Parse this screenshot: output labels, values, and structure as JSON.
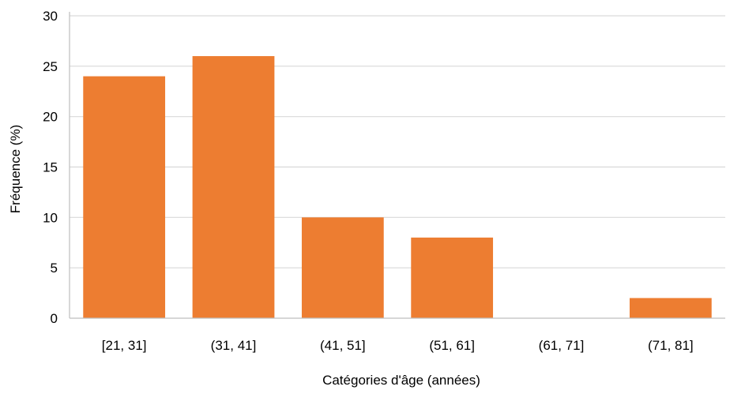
{
  "chart_data": {
    "type": "bar",
    "title": "",
    "xlabel": "Catégories d'âge (années)",
    "ylabel": "Fréquence (%)",
    "categories": [
      "[21, 31]",
      "(31, 41]",
      "(41, 51]",
      "(51, 61]",
      "(61, 71]",
      "(71, 81]"
    ],
    "values": [
      24,
      26,
      10,
      8,
      0,
      2
    ],
    "ylim": [
      0,
      30
    ],
    "yticks": [
      "0",
      "5",
      "10",
      "15",
      "20",
      "25",
      "30"
    ],
    "grid": true,
    "bar_color": "#ED7D31",
    "grid_color": "#D9D9D9",
    "axis_color": "#BFBFBF",
    "text_color": "#000000"
  }
}
